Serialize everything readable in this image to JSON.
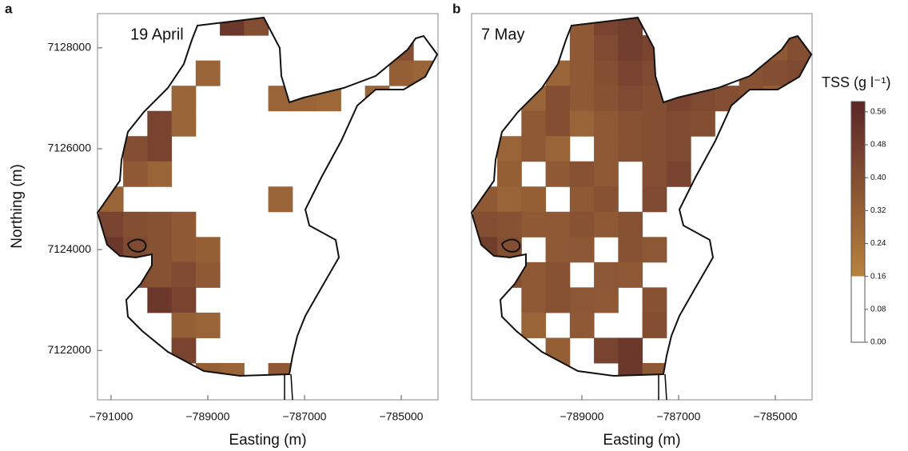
{
  "chart_data": [
    {
      "type": "heatmap",
      "panel_label": "a",
      "title": "19 April",
      "x_label": "Easting (m)",
      "y_label": "Northing (m)",
      "xlim": [
        -791280,
        -784240
      ],
      "ylim": [
        7121020,
        7128680
      ],
      "xticks": [
        {
          "value": -791000,
          "label": "−791000"
        },
        {
          "value": -789000,
          "label": "−789000"
        },
        {
          "value": -787000,
          "label": "−787000"
        },
        {
          "value": -785000,
          "label": "−785000"
        }
      ],
      "yticks": [
        7122000,
        7124000,
        7126000,
        7128000
      ],
      "x": [
        -791000,
        -790500,
        -790000,
        -789500,
        -789000,
        -788500,
        -788000,
        -787500,
        -787000,
        -786500,
        -786000,
        -785500,
        -785000,
        -784500
      ],
      "y": [
        7128500,
        7128000,
        7127500,
        7127000,
        7126500,
        7126000,
        7125500,
        7125000,
        7124500,
        7124000,
        7123500,
        7123000,
        7122500,
        7122000,
        7121500
      ],
      "values": [
        [
          null,
          null,
          null,
          null,
          null,
          0.5,
          0.4,
          null,
          null,
          null,
          null,
          null,
          null,
          null
        ],
        [
          null,
          null,
          null,
          null,
          null,
          null,
          null,
          null,
          null,
          null,
          null,
          null,
          0.4,
          null
        ],
        [
          null,
          null,
          null,
          null,
          0.3,
          null,
          null,
          null,
          null,
          null,
          null,
          null,
          0.32,
          0.3
        ],
        [
          null,
          null,
          null,
          0.3,
          null,
          null,
          null,
          0.3,
          0.3,
          0.28,
          null,
          0.3,
          null,
          null
        ],
        [
          null,
          null,
          0.45,
          0.3,
          null,
          null,
          null,
          null,
          null,
          null,
          null,
          null,
          null,
          null
        ],
        [
          null,
          0.4,
          0.45,
          null,
          null,
          null,
          null,
          null,
          null,
          null,
          null,
          null,
          null,
          null
        ],
        [
          null,
          0.35,
          0.3,
          null,
          null,
          null,
          null,
          null,
          null,
          null,
          null,
          null,
          null,
          null
        ],
        [
          0.3,
          null,
          null,
          null,
          null,
          null,
          null,
          0.3,
          null,
          null,
          null,
          null,
          null,
          null
        ],
        [
          0.45,
          0.4,
          0.38,
          0.35,
          null,
          null,
          null,
          null,
          null,
          null,
          null,
          null,
          null,
          null
        ],
        [
          0.5,
          0.42,
          0.38,
          0.35,
          0.32,
          null,
          null,
          null,
          null,
          null,
          null,
          null,
          null,
          null
        ],
        [
          null,
          0.4,
          0.38,
          0.42,
          0.35,
          null,
          null,
          null,
          null,
          null,
          null,
          null,
          null,
          null
        ],
        [
          null,
          null,
          0.5,
          0.45,
          null,
          null,
          null,
          null,
          null,
          null,
          null,
          null,
          null,
          null
        ],
        [
          null,
          null,
          null,
          0.32,
          0.3,
          null,
          null,
          null,
          null,
          null,
          null,
          null,
          null,
          null
        ],
        [
          null,
          null,
          null,
          0.45,
          null,
          null,
          null,
          null,
          null,
          null,
          null,
          null,
          null,
          null
        ],
        [
          null,
          null,
          null,
          null,
          0.32,
          0.3,
          null,
          0.35,
          0.48,
          null,
          null,
          null,
          null,
          null
        ]
      ]
    },
    {
      "type": "heatmap",
      "panel_label": "b",
      "title": "7 May",
      "x_label": "Easting (m)",
      "xlim": [
        -791280,
        -784240
      ],
      "ylim": [
        7121020,
        7128680
      ],
      "xticks": [
        {
          "value": -789000,
          "label": "−789000"
        },
        {
          "value": -787000,
          "label": "−787000"
        },
        {
          "value": -785000,
          "label": "−785000"
        }
      ],
      "x": [
        -791000,
        -790500,
        -790000,
        -789500,
        -789000,
        -788500,
        -788000,
        -787500,
        -787000,
        -786500,
        -786000,
        -785500,
        -785000,
        -784500
      ],
      "y": [
        7128500,
        7128000,
        7127500,
        7127000,
        7126500,
        7126000,
        7125500,
        7125000,
        7124500,
        7124000,
        7123500,
        7123000,
        7122500,
        7122000,
        7121500
      ],
      "values": [
        [
          null,
          null,
          null,
          null,
          0.35,
          0.45,
          0.48,
          null,
          null,
          null,
          null,
          null,
          null,
          null
        ],
        [
          null,
          null,
          null,
          null,
          0.35,
          0.42,
          0.48,
          0.45,
          null,
          null,
          null,
          null,
          0.35,
          0.4
        ],
        [
          null,
          null,
          null,
          0.3,
          0.35,
          0.4,
          0.45,
          0.42,
          null,
          null,
          null,
          0.38,
          0.4,
          0.42
        ],
        [
          null,
          null,
          0.3,
          0.4,
          0.35,
          0.38,
          0.42,
          0.4,
          0.45,
          0.42,
          0.4,
          0.38,
          0.32,
          null
        ],
        [
          null,
          null,
          0.35,
          0.4,
          0.3,
          0.35,
          0.38,
          0.4,
          0.42,
          0.4,
          null,
          null,
          null,
          null
        ],
        [
          null,
          0.3,
          0.35,
          0.3,
          null,
          0.35,
          0.38,
          0.4,
          0.42,
          null,
          null,
          null,
          null,
          null
        ],
        [
          null,
          0.32,
          null,
          0.35,
          0.38,
          0.35,
          null,
          0.4,
          0.45,
          null,
          null,
          null,
          null,
          null
        ],
        [
          0.35,
          0.3,
          0.32,
          null,
          0.35,
          0.38,
          null,
          0.42,
          null,
          null,
          null,
          null,
          null,
          null
        ],
        [
          0.4,
          0.38,
          0.35,
          0.35,
          0.38,
          0.35,
          0.38,
          null,
          null,
          null,
          null,
          null,
          null,
          null
        ],
        [
          0.48,
          0.4,
          null,
          0.35,
          0.36,
          null,
          0.38,
          0.36,
          null,
          null,
          null,
          null,
          null,
          null
        ],
        [
          null,
          0.38,
          0.35,
          0.38,
          null,
          0.36,
          0.35,
          null,
          null,
          null,
          null,
          null,
          null,
          null
        ],
        [
          null,
          null,
          0.35,
          0.38,
          0.36,
          0.35,
          null,
          0.38,
          null,
          null,
          null,
          null,
          null,
          null
        ],
        [
          null,
          null,
          0.3,
          null,
          0.35,
          null,
          null,
          0.4,
          null,
          null,
          null,
          null,
          null,
          null
        ],
        [
          null,
          null,
          null,
          0.32,
          null,
          0.45,
          0.5,
          null,
          null,
          null,
          null,
          null,
          null,
          null
        ],
        [
          null,
          null,
          null,
          0.3,
          null,
          null,
          0.5,
          0.35,
          null,
          null,
          null,
          null,
          null,
          null
        ]
      ]
    }
  ],
  "colorbar": {
    "title": "TSS (g l⁻¹)",
    "clim": [
      0,
      0.585
    ],
    "ticks": [
      {
        "value": 0,
        "label": "0.00"
      },
      0.08,
      0.16,
      0.24,
      0.32,
      {
        "value": 0.4,
        "label": "0.40"
      },
      0.48,
      0.56
    ],
    "color_stops": [
      [
        0,
        "#ffffff"
      ],
      [
        0.16,
        "#ffffff"
      ],
      [
        0.16,
        "#b8823e"
      ],
      [
        0.585,
        "#5a2628"
      ]
    ]
  }
}
